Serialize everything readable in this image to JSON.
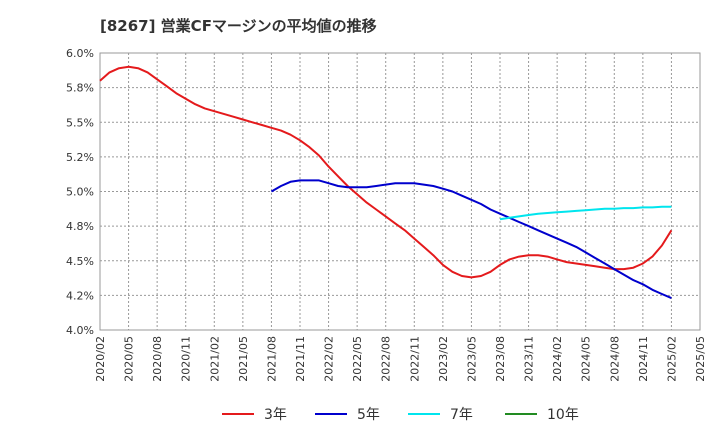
{
  "chart_data": {
    "type": "line",
    "title": "[8267]  営業CFマージンの平均値の推移",
    "xlabel": "",
    "ylabel": "",
    "ylim": [
      4.0,
      6.0
    ],
    "yticks": [
      4.0,
      4.25,
      4.5,
      4.75,
      5.0,
      5.25,
      5.5,
      5.75,
      6.0
    ],
    "ytick_labels": [
      "4.0%",
      "4.2%",
      "4.5%",
      "4.8%",
      "5.0%",
      "5.2%",
      "5.5%",
      "5.8%",
      "6.0%"
    ],
    "xticks": [
      "2020/02",
      "2020/05",
      "2020/08",
      "2020/11",
      "2021/02",
      "2021/05",
      "2021/08",
      "2021/11",
      "2022/02",
      "2022/05",
      "2022/08",
      "2022/11",
      "2023/02",
      "2023/05",
      "2023/08",
      "2023/11",
      "2024/02",
      "2024/05",
      "2024/08",
      "2024/11",
      "2025/02",
      "2025/05"
    ],
    "grid": true,
    "legend_position": "bottom",
    "series": [
      {
        "name": "3年",
        "color": "#e41a1c",
        "x": [
          "2020/02",
          "2020/03",
          "2020/04",
          "2020/05",
          "2020/06",
          "2020/07",
          "2020/08",
          "2020/09",
          "2020/10",
          "2020/11",
          "2020/12",
          "2021/01",
          "2021/02",
          "2021/03",
          "2021/04",
          "2021/05",
          "2021/06",
          "2021/07",
          "2021/08",
          "2021/09",
          "2021/10",
          "2021/11",
          "2021/12",
          "2022/01",
          "2022/02",
          "2022/03",
          "2022/04",
          "2022/05",
          "2022/06",
          "2022/07",
          "2022/08",
          "2022/09",
          "2022/10",
          "2022/11",
          "2022/12",
          "2023/01",
          "2023/02",
          "2023/03",
          "2023/04",
          "2023/05",
          "2023/06",
          "2023/07",
          "2023/08",
          "2023/09",
          "2023/10",
          "2023/11",
          "2023/12",
          "2024/01",
          "2024/02",
          "2024/03",
          "2024/04",
          "2024/05",
          "2024/06",
          "2024/07",
          "2024/08",
          "2024/09",
          "2024/10",
          "2024/11",
          "2024/12",
          "2025/01",
          "2025/02"
        ],
        "values": [
          5.8,
          5.86,
          5.89,
          5.9,
          5.89,
          5.86,
          5.81,
          5.76,
          5.71,
          5.67,
          5.63,
          5.6,
          5.58,
          5.56,
          5.54,
          5.52,
          5.5,
          5.48,
          5.46,
          5.44,
          5.41,
          5.37,
          5.32,
          5.26,
          5.18,
          5.11,
          5.04,
          4.98,
          4.92,
          4.87,
          4.82,
          4.77,
          4.72,
          4.66,
          4.6,
          4.54,
          4.47,
          4.42,
          4.39,
          4.38,
          4.39,
          4.42,
          4.47,
          4.51,
          4.53,
          4.54,
          4.54,
          4.53,
          4.51,
          4.49,
          4.48,
          4.47,
          4.46,
          4.45,
          4.44,
          4.44,
          4.45,
          4.48,
          4.53,
          4.61,
          4.72
        ]
      },
      {
        "name": "5年",
        "color": "#0000cd",
        "x": [
          "2021/08",
          "2021/09",
          "2021/10",
          "2021/11",
          "2021/12",
          "2022/01",
          "2022/02",
          "2022/03",
          "2022/04",
          "2022/05",
          "2022/06",
          "2022/07",
          "2022/08",
          "2022/09",
          "2022/10",
          "2022/11",
          "2022/12",
          "2023/01",
          "2023/02",
          "2023/03",
          "2023/04",
          "2023/05",
          "2023/06",
          "2023/07",
          "2023/08",
          "2023/09",
          "2023/10",
          "2023/11",
          "2023/12",
          "2024/01",
          "2024/02",
          "2024/03",
          "2024/04",
          "2024/05",
          "2024/06",
          "2024/07",
          "2024/08",
          "2024/09",
          "2024/10",
          "2024/11",
          "2024/12",
          "2025/01",
          "2025/02"
        ],
        "values": [
          5.0,
          5.04,
          5.07,
          5.08,
          5.08,
          5.08,
          5.06,
          5.04,
          5.03,
          5.03,
          5.03,
          5.04,
          5.05,
          5.06,
          5.06,
          5.06,
          5.05,
          5.04,
          5.02,
          5.0,
          4.97,
          4.94,
          4.91,
          4.87,
          4.84,
          4.81,
          4.78,
          4.75,
          4.72,
          4.69,
          4.66,
          4.63,
          4.6,
          4.56,
          4.52,
          4.48,
          4.44,
          4.4,
          4.36,
          4.33,
          4.29,
          4.26,
          4.23
        ]
      },
      {
        "name": "7年",
        "color": "#00e5ee",
        "x": [
          "2023/08",
          "2023/09",
          "2023/10",
          "2023/11",
          "2023/12",
          "2024/01",
          "2024/02",
          "2024/03",
          "2024/04",
          "2024/05",
          "2024/06",
          "2024/07",
          "2024/08",
          "2024/09",
          "2024/10",
          "2024/11",
          "2024/12",
          "2025/01",
          "2025/02"
        ],
        "values": [
          4.8,
          4.81,
          4.82,
          4.83,
          4.84,
          4.845,
          4.85,
          4.855,
          4.86,
          4.865,
          4.87,
          4.875,
          4.875,
          4.88,
          4.88,
          4.885,
          4.885,
          4.89,
          4.89
        ]
      },
      {
        "name": "10年",
        "color": "#228b22",
        "x": [],
        "values": []
      }
    ]
  }
}
